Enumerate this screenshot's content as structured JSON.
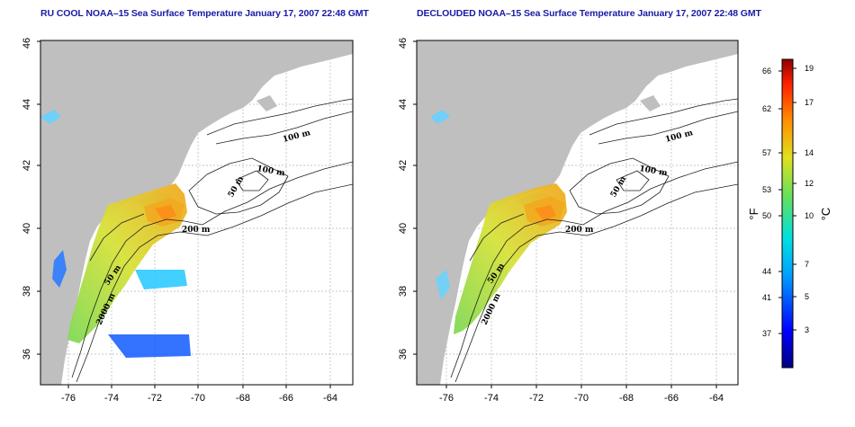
{
  "panels": [
    {
      "title": "RU COOL NOAA–15 Sea Surface Temperature January 17, 2007 22:48 GMT",
      "contour_labels": [
        "100 m",
        "100 m",
        "50 m",
        "200 m",
        "50 m",
        "2000 m"
      ]
    },
    {
      "title": "DECLOUDED NOAA–15 Sea Surface Temperature January 17, 2007 22:48 GMT",
      "contour_labels": [
        "100 m",
        "100 m",
        "50 m",
        "200 m",
        "50 m",
        "2000 m"
      ]
    }
  ],
  "axes": {
    "x_ticks": [
      "-76",
      "-74",
      "-72",
      "-70",
      "-68",
      "-66",
      "-64"
    ],
    "y_ticks": [
      "36",
      "38",
      "40",
      "42",
      "44",
      "46"
    ]
  },
  "colorbar": {
    "fahrenheit_unit": "°F",
    "celsius_unit": "°C",
    "fahrenheit_ticks": [
      "66",
      "62",
      "57",
      "53",
      "50",
      "44",
      "41",
      "37"
    ],
    "celsius_ticks": [
      "19",
      "17",
      "14",
      "12",
      "10",
      "7",
      "5",
      "3"
    ]
  },
  "colors": {
    "land": "#bfbfbf",
    "ocean": "#ffffff",
    "title": "#1a1aa6",
    "grid": "#b0b0b0"
  }
}
